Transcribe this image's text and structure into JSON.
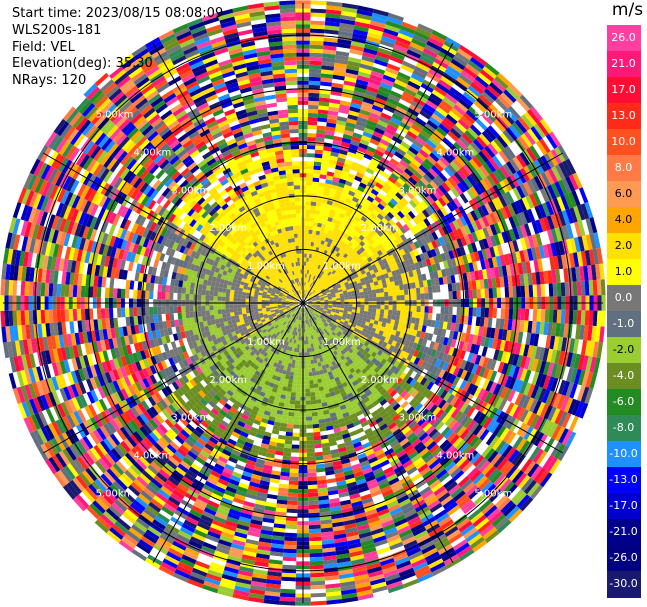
{
  "header": {
    "start_time": "Start time: 2023/08/15 08:08:09",
    "instrument": "WLS200s-181",
    "field": "Field: VEL",
    "elevation": "Elevation(deg): 35.30",
    "nrays": "NRays: 120"
  },
  "chart_data": {
    "type": "ppi",
    "field": "VEL",
    "unit": "m/s",
    "n_rays": 120,
    "elevation_deg": 35.3,
    "range_ring_labels": [
      "1.00km",
      "2.00km",
      "3.00km",
      "4.00km",
      "5.00km"
    ],
    "range_ring_km": [
      1,
      2,
      3,
      4,
      5
    ],
    "spoke_azimuths_deg": [
      0,
      30,
      60,
      90,
      120,
      150,
      180,
      210,
      240,
      270,
      300,
      330
    ],
    "colorbar": {
      "ticks": [
        "26.0",
        "21.0",
        "17.0",
        "13.0",
        "10.0",
        "8.0",
        "6.0",
        "4.0",
        "2.0",
        "1.0",
        "0.0",
        "-1.0",
        "-2.0",
        "-4.0",
        "-6.0",
        "-8.0",
        "-10.0",
        "-13.0",
        "-17.0",
        "-21.0",
        "-26.0",
        "-30.0"
      ],
      "colors": [
        "#ff3ea0",
        "#ff1a7a",
        "#ff0d35",
        "#ff2a1a",
        "#ff5020",
        "#ff7a45",
        "#ff9a55",
        "#ffa500",
        "#ffe000",
        "#ffff00",
        "#777777",
        "#607080",
        "#9acd32",
        "#6b8e23",
        "#228b22",
        "#2e8b57",
        "#1e90ff",
        "#0000ff",
        "#0000cd",
        "#00008b",
        "#000080",
        "#191970"
      ]
    },
    "velocity_structure": {
      "inner_km": 1.3,
      "mid_km": 2.2,
      "near_field_north_ms": 2.0,
      "near_field_south_ms": -2.0,
      "far_field": "noise"
    }
  }
}
